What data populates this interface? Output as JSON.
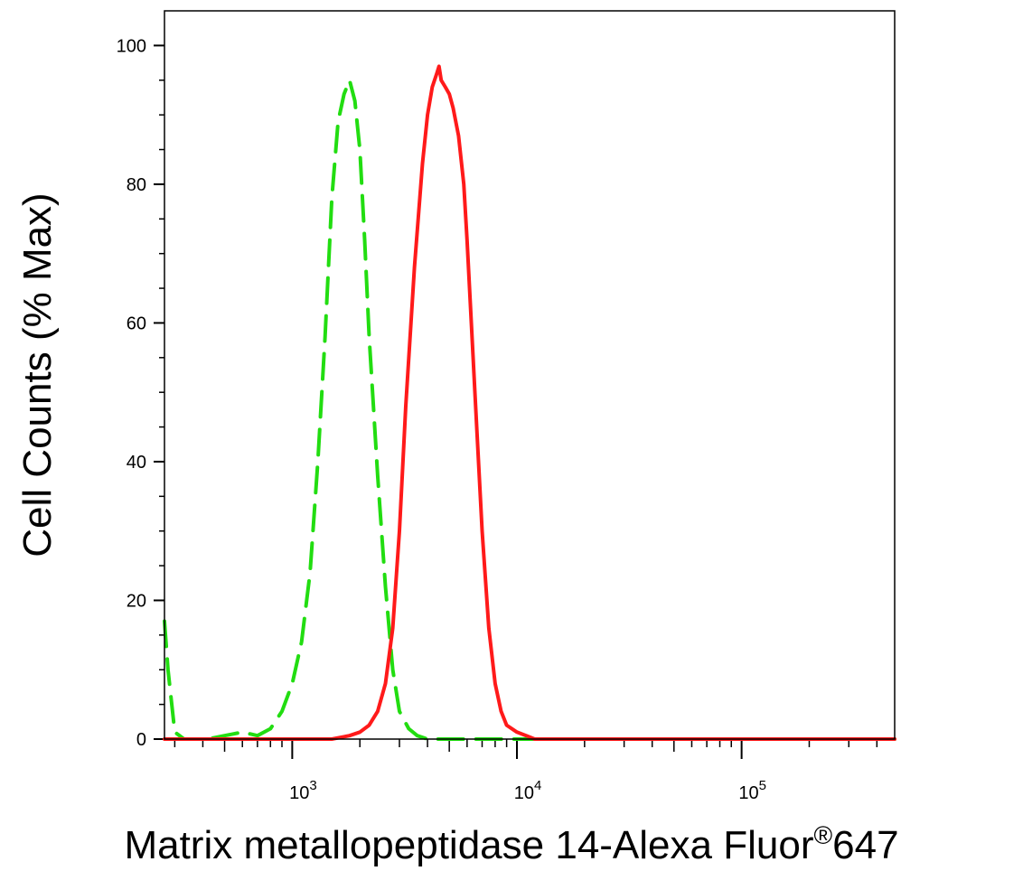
{
  "chart_data": {
    "type": "line",
    "title": "",
    "xlabel": "Matrix metallopeptidase 14-Alexa Fluor",
    "xlabel_superscript": "®",
    "xlabel_suffix": "647",
    "ylabel": "Cell Counts (% Max)",
    "x_scale": "log",
    "xlim": [
      270,
      480000
    ],
    "ylim": [
      0,
      105
    ],
    "grid": false,
    "x_ticks": [
      {
        "base": "10",
        "exp": "3",
        "value": 1000
      },
      {
        "base": "10",
        "exp": "4",
        "value": 10000
      },
      {
        "base": "10",
        "exp": "5",
        "value": 100000
      }
    ],
    "y_ticks": [
      "0",
      "20",
      "40",
      "60",
      "80",
      "100"
    ],
    "series": [
      {
        "color": "#22dd11",
        "style": "dashed",
        "x": [
          270,
          280,
          300,
          330,
          370,
          420,
          500,
          600,
          700,
          800,
          900,
          1000,
          1100,
          1200,
          1300,
          1400,
          1500,
          1600,
          1700,
          1800,
          1900,
          2000,
          2100,
          2200,
          2400,
          2600,
          2800,
          3000,
          3300,
          3600,
          4000,
          5000,
          7000,
          10000,
          30000,
          100000,
          480000
        ],
        "y": [
          17,
          10,
          1,
          0,
          0,
          0,
          0.5,
          1,
          0.5,
          1.5,
          4,
          8,
          14,
          24,
          40,
          58,
          78,
          89,
          93,
          95,
          92,
          85,
          72,
          58,
          38,
          22,
          10,
          4,
          1.5,
          0.5,
          0,
          0,
          0,
          0,
          0,
          0,
          0
        ]
      },
      {
        "color": "#ff1a1a",
        "style": "solid",
        "x": [
          270,
          1000,
          1500,
          1800,
          2000,
          2200,
          2400,
          2600,
          2800,
          3000,
          3200,
          3500,
          3800,
          4000,
          4200,
          4400,
          4500,
          4600,
          4800,
          5000,
          5200,
          5500,
          5800,
          6000,
          6500,
          7000,
          7500,
          8000,
          8500,
          9000,
          10000,
          11000,
          12000,
          14000,
          20000,
          100000,
          480000
        ],
        "y": [
          0,
          0,
          0,
          0.5,
          1,
          2,
          4,
          8,
          16,
          30,
          48,
          68,
          83,
          90,
          94,
          96,
          97,
          95,
          94,
          93,
          91,
          87,
          80,
          72,
          50,
          30,
          16,
          8,
          4,
          2,
          1,
          0.5,
          0,
          0,
          0,
          0,
          0
        ]
      }
    ]
  }
}
